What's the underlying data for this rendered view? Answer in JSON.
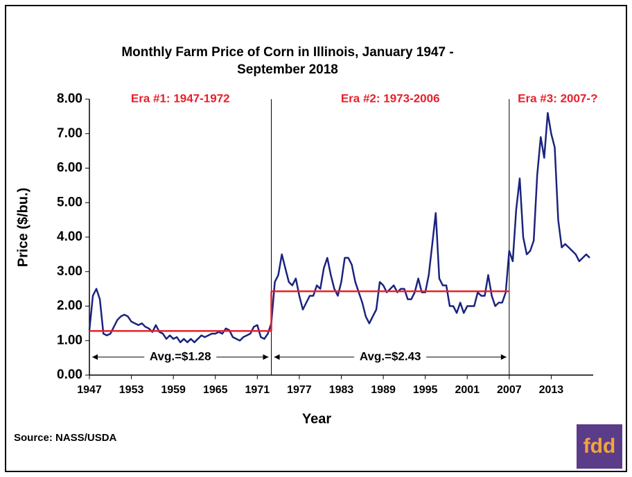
{
  "chart_data": {
    "type": "line",
    "title": [
      "Monthly Farm Price of Corn in Illinois, January 1947 -",
      "September 2018"
    ],
    "x_label": "Year",
    "y_label": "Price ($/bu.)",
    "source": "Source: NASS/USDA",
    "logo": "fdd",
    "xlim": [
      1947,
      2019
    ],
    "ylim": [
      0,
      8
    ],
    "xticks": [
      1947,
      1953,
      1959,
      1965,
      1971,
      1977,
      1983,
      1989,
      1995,
      2001,
      2007,
      2013
    ],
    "yticks": [
      {
        "value": 0,
        "label": "0.00"
      },
      {
        "value": 1,
        "label": "1.00"
      },
      {
        "value": 2,
        "label": "2.00"
      },
      {
        "value": 3,
        "label": "3.00"
      },
      {
        "value": 4,
        "label": "4.00"
      },
      {
        "value": 5,
        "label": "5.00"
      },
      {
        "value": 6,
        "label": "6.00"
      },
      {
        "value": 7,
        "label": "7.00"
      },
      {
        "value": 8,
        "label": "8.00"
      }
    ],
    "eras": [
      {
        "label": "Era #1: 1947-1972",
        "start": 1947,
        "end": 1973,
        "avg": 1.28,
        "avg_label": "Avg.=$1.28"
      },
      {
        "label": "Era #2: 1973-2006",
        "start": 1973,
        "end": 2007,
        "avg": 2.43,
        "avg_label": "Avg.=$2.43"
      },
      {
        "label": "Era #3: 2007-?",
        "start": 2007
      }
    ],
    "avg_color": "#e8202a",
    "series": [
      {
        "name": "Price",
        "color": "#1a237e",
        "x": [
          1947.0,
          1947.5,
          1948.0,
          1948.5,
          1949.0,
          1949.5,
          1950.0,
          1950.5,
          1951.0,
          1951.5,
          1952.0,
          1952.5,
          1953.0,
          1953.5,
          1954.0,
          1954.5,
          1955.0,
          1955.5,
          1956.0,
          1956.5,
          1957.0,
          1957.5,
          1958.0,
          1958.5,
          1959.0,
          1959.5,
          1960.0,
          1960.5,
          1961.0,
          1961.5,
          1962.0,
          1962.5,
          1963.0,
          1963.5,
          1964.0,
          1964.5,
          1965.0,
          1965.5,
          1966.0,
          1966.5,
          1967.0,
          1967.5,
          1968.0,
          1968.5,
          1969.0,
          1969.5,
          1970.0,
          1970.5,
          1971.0,
          1971.5,
          1972.0,
          1972.5,
          1973.0,
          1973.5,
          1974.0,
          1974.5,
          1975.0,
          1975.5,
          1976.0,
          1976.5,
          1977.0,
          1977.5,
          1978.0,
          1978.5,
          1979.0,
          1979.5,
          1980.0,
          1980.5,
          1981.0,
          1981.5,
          1982.0,
          1982.5,
          1983.0,
          1983.5,
          1984.0,
          1984.5,
          1985.0,
          1985.5,
          1986.0,
          1986.5,
          1987.0,
          1987.5,
          1988.0,
          1988.5,
          1989.0,
          1989.5,
          1990.0,
          1990.5,
          1991.0,
          1991.5,
          1992.0,
          1992.5,
          1993.0,
          1993.5,
          1994.0,
          1994.5,
          1995.0,
          1995.5,
          1996.0,
          1996.5,
          1997.0,
          1997.5,
          1998.0,
          1998.5,
          1999.0,
          1999.5,
          2000.0,
          2000.5,
          2001.0,
          2001.5,
          2002.0,
          2002.5,
          2003.0,
          2003.5,
          2004.0,
          2004.5,
          2005.0,
          2005.5,
          2006.0,
          2006.5,
          2007.0,
          2007.5,
          2008.0,
          2008.5,
          2009.0,
          2009.5,
          2010.0,
          2010.5,
          2011.0,
          2011.5,
          2012.0,
          2012.5,
          2013.0,
          2013.5,
          2014.0,
          2014.5,
          2015.0,
          2015.5,
          2016.0,
          2016.5,
          2017.0,
          2017.5,
          2018.0,
          2018.5
        ],
        "values": [
          1.3,
          2.3,
          2.5,
          2.2,
          1.2,
          1.15,
          1.2,
          1.4,
          1.6,
          1.7,
          1.75,
          1.7,
          1.55,
          1.5,
          1.45,
          1.5,
          1.4,
          1.35,
          1.25,
          1.45,
          1.25,
          1.2,
          1.05,
          1.15,
          1.05,
          1.1,
          0.95,
          1.05,
          0.95,
          1.05,
          0.95,
          1.05,
          1.15,
          1.1,
          1.15,
          1.2,
          1.2,
          1.25,
          1.2,
          1.35,
          1.3,
          1.1,
          1.05,
          1.0,
          1.1,
          1.15,
          1.2,
          1.4,
          1.45,
          1.1,
          1.05,
          1.2,
          1.5,
          2.7,
          2.9,
          3.5,
          3.1,
          2.7,
          2.6,
          2.8,
          2.3,
          1.9,
          2.1,
          2.3,
          2.3,
          2.6,
          2.5,
          3.1,
          3.4,
          2.9,
          2.5,
          2.3,
          2.7,
          3.4,
          3.4,
          3.2,
          2.7,
          2.4,
          2.1,
          1.7,
          1.5,
          1.7,
          1.9,
          2.7,
          2.6,
          2.4,
          2.5,
          2.6,
          2.4,
          2.5,
          2.5,
          2.2,
          2.2,
          2.4,
          2.8,
          2.4,
          2.4,
          2.9,
          3.8,
          4.7,
          2.8,
          2.6,
          2.6,
          2.0,
          2.0,
          1.8,
          2.1,
          1.8,
          2.0,
          2.0,
          2.0,
          2.4,
          2.3,
          2.3,
          2.9,
          2.3,
          2.0,
          2.1,
          2.1,
          2.4,
          3.6,
          3.3,
          4.8,
          5.7,
          4.0,
          3.5,
          3.6,
          3.9,
          5.8,
          6.9,
          6.3,
          7.6,
          7.0,
          6.6,
          4.5,
          3.7,
          3.8,
          3.7,
          3.6,
          3.5,
          3.3,
          3.4,
          3.5,
          3.4
        ]
      }
    ]
  }
}
